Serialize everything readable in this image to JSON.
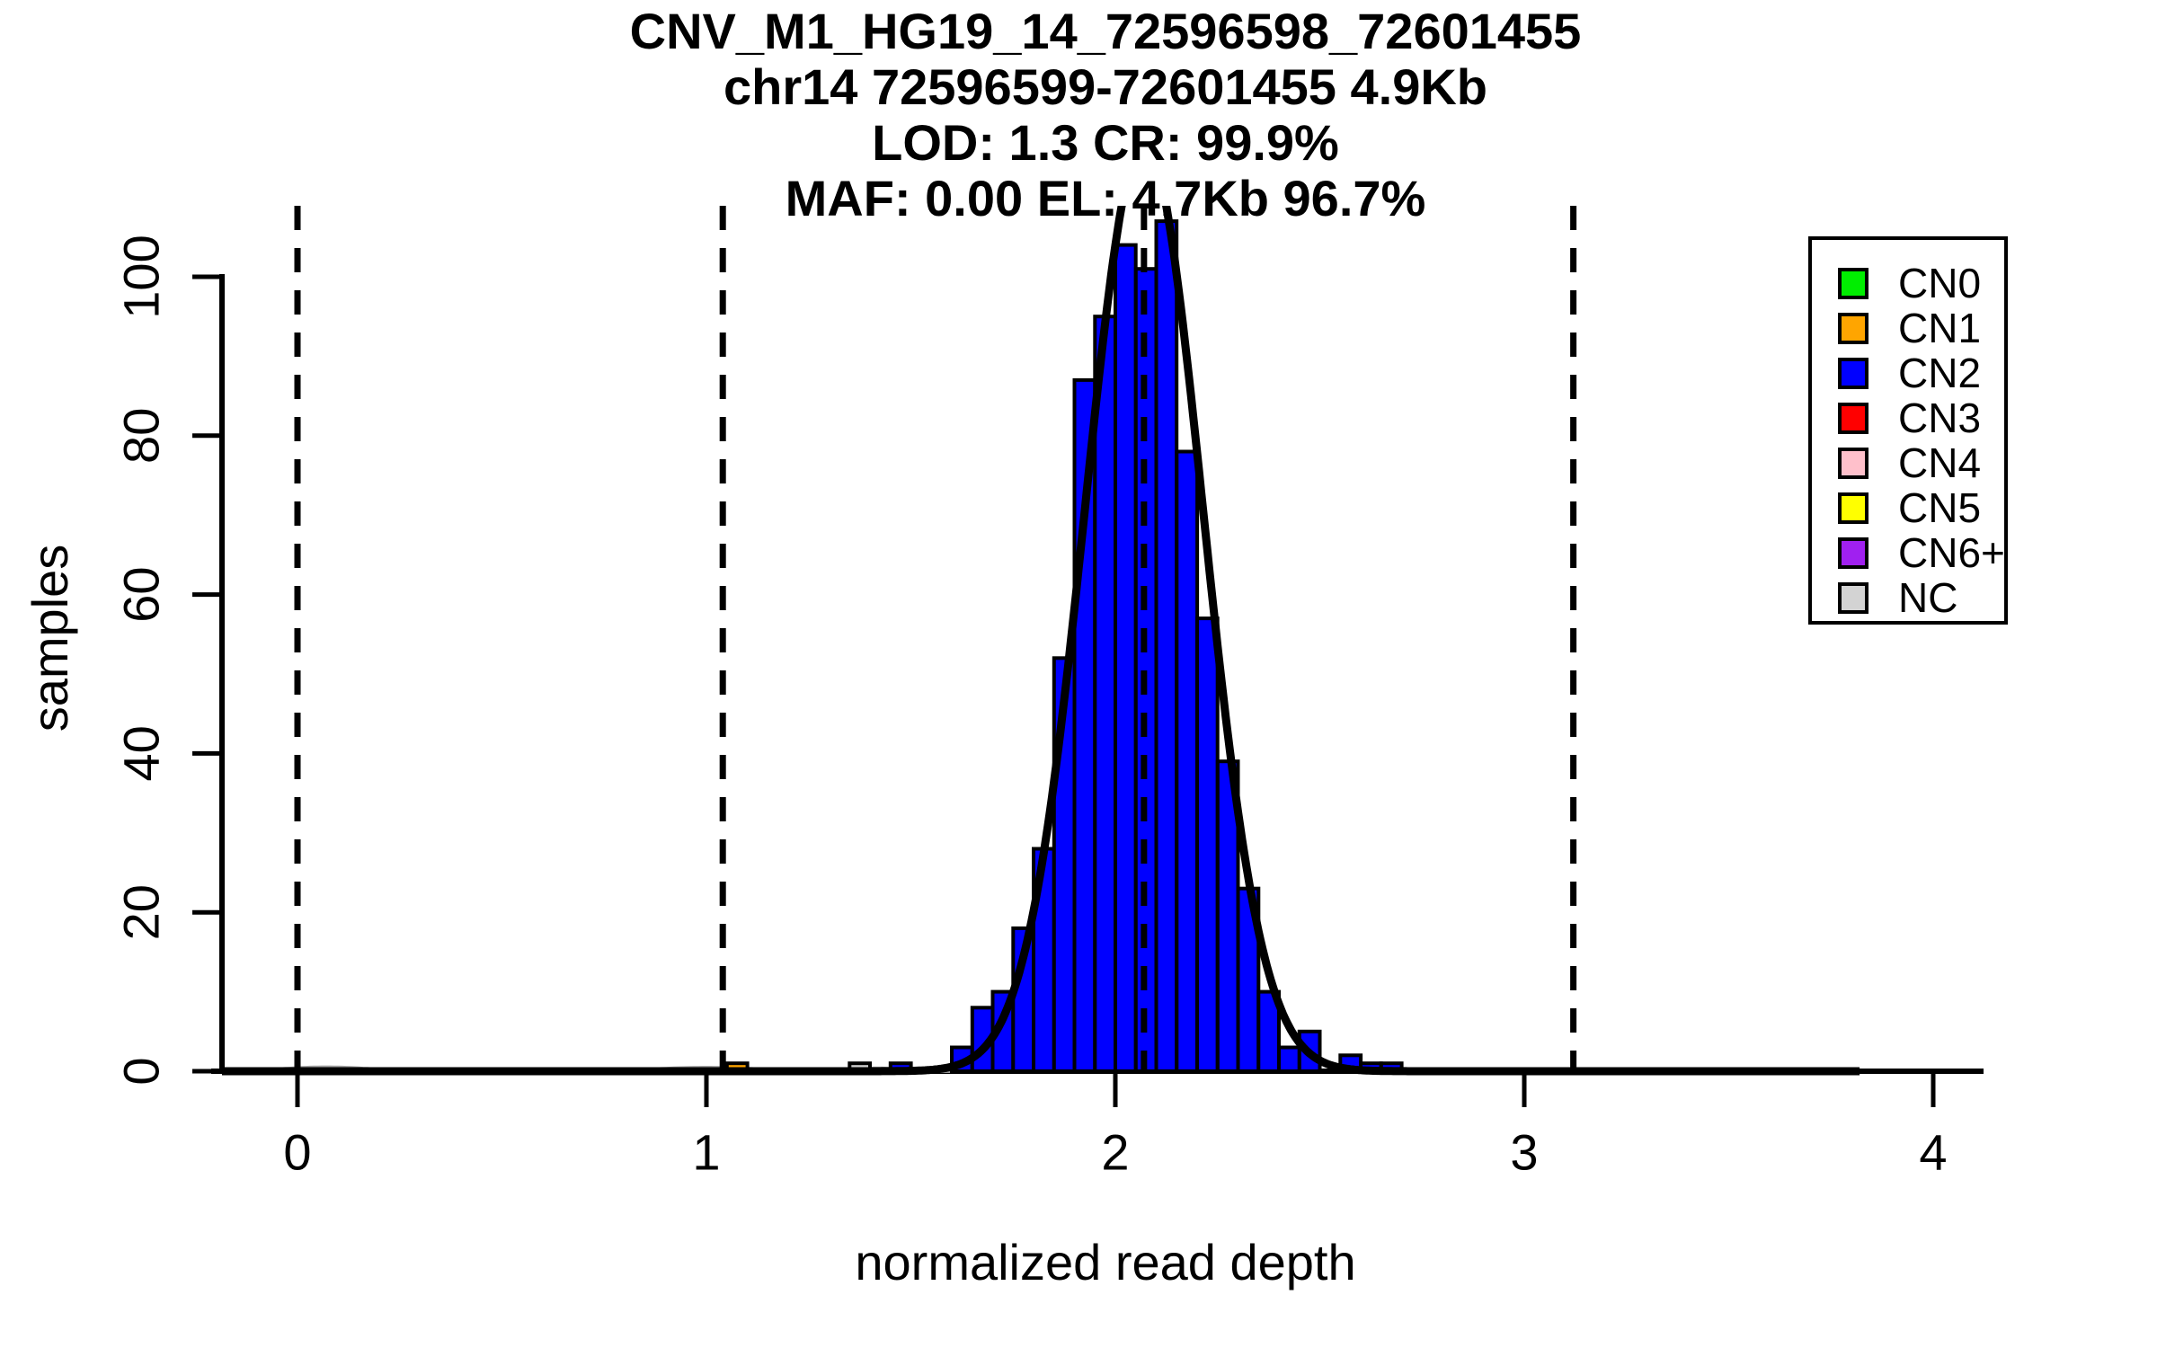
{
  "title": {
    "lines": [
      "CNV_M1_HG19_14_72596598_72601455",
      "chr14 72596599-72601455 4.9Kb",
      "LOD: 1.3 CR: 99.9%",
      "MAF: 0.00 EL: 4.7Kb 96.7%"
    ]
  },
  "axes": {
    "x_label": "normalized read depth",
    "y_label": "samples"
  },
  "legend": {
    "items": [
      {
        "label": "CN0",
        "color": "#00EE00"
      },
      {
        "label": "CN1",
        "color": "#FFA500"
      },
      {
        "label": "CN2",
        "color": "#0000FF"
      },
      {
        "label": "CN3",
        "color": "#FF0000"
      },
      {
        "label": "CN4",
        "color": "#FFC0CB"
      },
      {
        "label": "CN5",
        "color": "#FFFF00"
      },
      {
        "label": "CN6+",
        "color": "#A020F0"
      },
      {
        "label": "NC",
        "color": "#D3D3D3"
      }
    ]
  },
  "chart_data": {
    "type": "bar",
    "subtype": "histogram-with-gaussian-fit",
    "title": "CNV_M1_HG19_14_72596598_72601455",
    "subtitle_lines": [
      "chr14 72596599-72601455 4.9Kb",
      "LOD: 1.3 CR: 99.9%",
      "MAF: 0.00 EL: 4.7Kb 96.7%"
    ],
    "xlabel": "normalized read depth",
    "ylabel": "samples",
    "x_ticks": [
      0,
      1,
      2,
      3,
      4
    ],
    "y_ticks": [
      0,
      20,
      40,
      60,
      80,
      100
    ],
    "xlim": [
      -0.21,
      4.14
    ],
    "ylim": [
      0,
      108.9
    ],
    "grid": false,
    "legend_position": "top-right",
    "bin_width": 0.05,
    "bars": [
      {
        "x0": 1.05,
        "x1": 1.1,
        "count": 1,
        "cn": "CN1"
      },
      {
        "x0": 1.35,
        "x1": 1.4,
        "count": 1,
        "cn": "NC"
      },
      {
        "x0": 1.45,
        "x1": 1.5,
        "count": 1,
        "cn": "CN2"
      },
      {
        "x0": 1.6,
        "x1": 1.65,
        "count": 3,
        "cn": "CN2"
      },
      {
        "x0": 1.65,
        "x1": 1.7,
        "count": 8,
        "cn": "CN2"
      },
      {
        "x0": 1.7,
        "x1": 1.75,
        "count": 10,
        "cn": "CN2"
      },
      {
        "x0": 1.75,
        "x1": 1.8,
        "count": 18,
        "cn": "CN2"
      },
      {
        "x0": 1.8,
        "x1": 1.85,
        "count": 28,
        "cn": "CN2"
      },
      {
        "x0": 1.85,
        "x1": 1.9,
        "count": 52,
        "cn": "CN2"
      },
      {
        "x0": 1.9,
        "x1": 1.95,
        "count": 87,
        "cn": "CN2"
      },
      {
        "x0": 1.95,
        "x1": 2.0,
        "count": 95,
        "cn": "CN2"
      },
      {
        "x0": 2.0,
        "x1": 2.05,
        "count": 104,
        "cn": "CN2"
      },
      {
        "x0": 2.05,
        "x1": 2.1,
        "count": 101,
        "cn": "CN2"
      },
      {
        "x0": 2.1,
        "x1": 2.15,
        "count": 107,
        "cn": "CN2"
      },
      {
        "x0": 2.15,
        "x1": 2.2,
        "count": 78,
        "cn": "CN2"
      },
      {
        "x0": 2.2,
        "x1": 2.25,
        "count": 57,
        "cn": "CN2"
      },
      {
        "x0": 2.25,
        "x1": 2.3,
        "count": 39,
        "cn": "CN2"
      },
      {
        "x0": 2.3,
        "x1": 2.35,
        "count": 23,
        "cn": "CN2"
      },
      {
        "x0": 2.35,
        "x1": 2.4,
        "count": 10,
        "cn": "CN2"
      },
      {
        "x0": 2.4,
        "x1": 2.45,
        "count": 3,
        "cn": "CN2"
      },
      {
        "x0": 2.45,
        "x1": 2.5,
        "count": 5,
        "cn": "CN2"
      },
      {
        "x0": 2.55,
        "x1": 2.6,
        "count": 2,
        "cn": "CN2"
      },
      {
        "x0": 2.6,
        "x1": 2.65,
        "count": 1,
        "cn": "CN2"
      },
      {
        "x0": 2.65,
        "x1": 2.7,
        "count": 1,
        "cn": "CN2"
      }
    ],
    "fit_curve": {
      "shape": "gaussian",
      "mean": 2.07,
      "sd": 0.144,
      "peak": 117,
      "x_start": -0.21,
      "x_end": 3.82,
      "color": "#000000"
    },
    "nc_curve": {
      "color": "#A6A6A6",
      "bumps": [
        {
          "mean": 0.07,
          "sd": 0.1,
          "peak": 0.5
        },
        {
          "mean": 1.0,
          "sd": 0.12,
          "peak": 0.45
        },
        {
          "mean": 1.42,
          "sd": 0.06,
          "peak": 0.35
        }
      ]
    },
    "dashed_vlines_x": [
      0,
      1.04,
      2.07,
      3.12
    ]
  }
}
